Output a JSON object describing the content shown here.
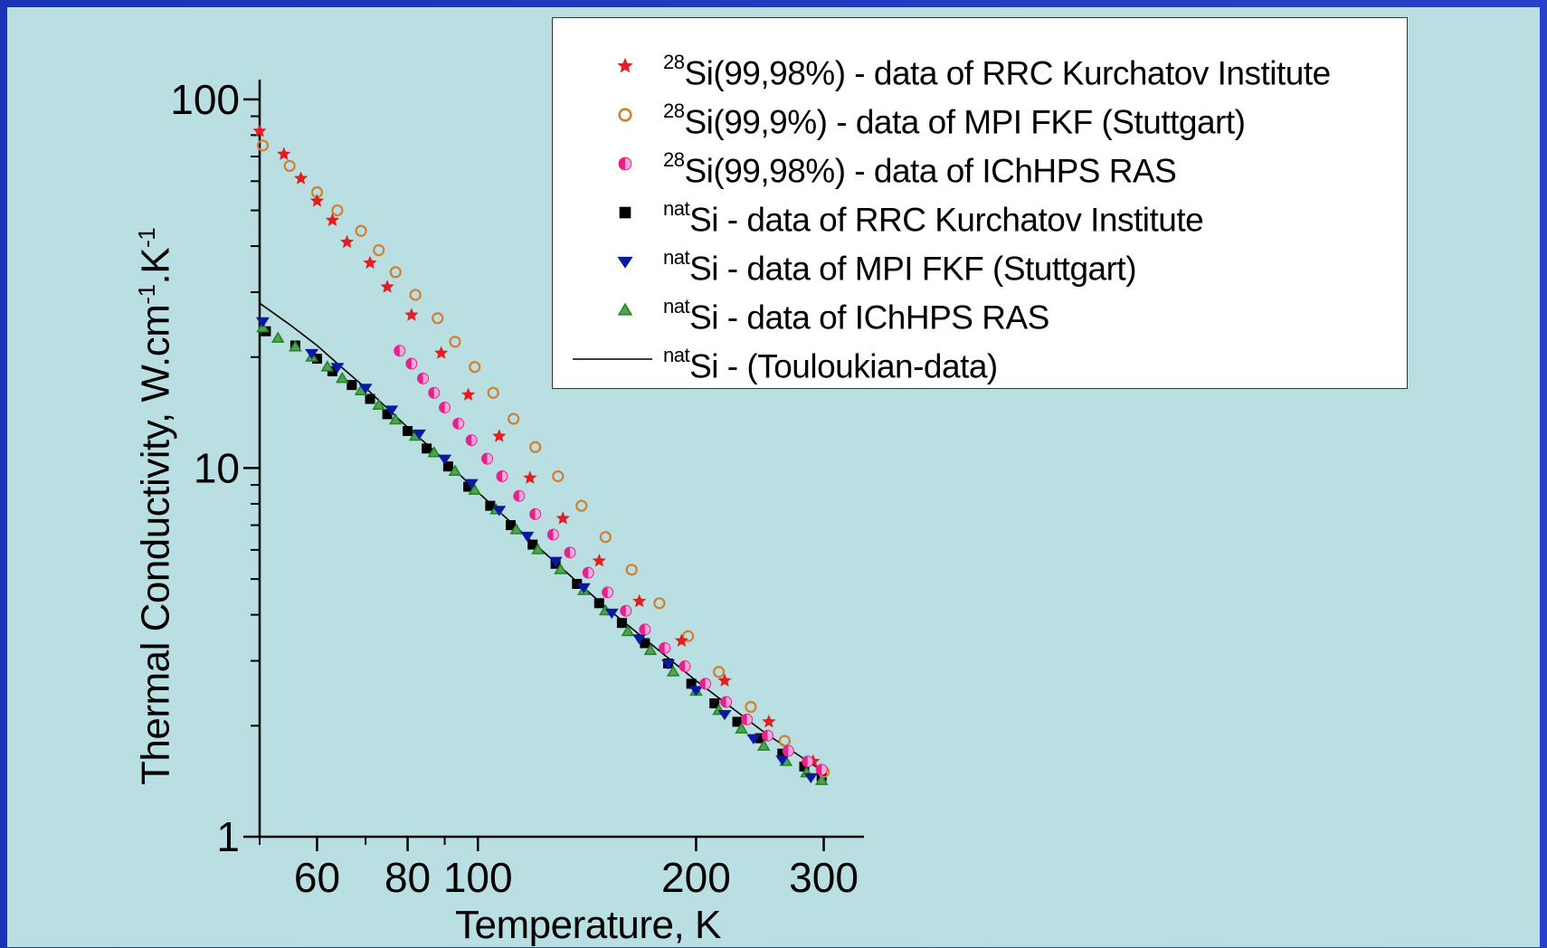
{
  "chart_data": {
    "type": "scatter",
    "xlabel": "Temperature, K",
    "ylabel": "Thermal Conductivity, W.cm-1.K-1",
    "ylabel_parts": [
      "Thermal Conductivity, W.cm",
      "-1",
      ".K",
      "-1"
    ],
    "xscale": "log",
    "yscale": "log",
    "xlim": [
      50,
      320
    ],
    "ylim": [
      1,
      110
    ],
    "x_ticks": [
      60,
      80,
      100,
      200,
      300
    ],
    "y_ticks": [
      1,
      10,
      100
    ],
    "x_tick_labels": [
      "60",
      "80",
      "100",
      "200",
      "300"
    ],
    "y_tick_labels": [
      "1",
      "10",
      "100"
    ],
    "legend_position": "top-right",
    "series": [
      {
        "name": "28Si(99,98%) - data of RRC Kurchatov Institute",
        "legend_sup": "28",
        "legend_text": "Si(99,98%) - data of RRC Kurchatov Institute",
        "marker": "star",
        "color": "#e02020",
        "x": [
          50,
          54,
          57,
          60,
          63,
          66,
          71,
          75,
          81,
          89,
          97,
          107,
          118,
          131,
          147,
          167,
          191,
          219,
          252,
          290
        ],
        "y": [
          82,
          71,
          61,
          53,
          47,
          41,
          36,
          31,
          26,
          20.5,
          15.8,
          12.2,
          9.4,
          7.3,
          5.6,
          4.35,
          3.4,
          2.65,
          2.05,
          1.6
        ]
      },
      {
        "name": "28Si(99,9%)  - data of MPI FKF (Stuttgart)",
        "legend_sup": "28",
        "legend_text": "Si(99,9%)  - data of MPI FKF (Stuttgart)",
        "marker": "ring",
        "color": "#d08030",
        "x": [
          50.5,
          55,
          60,
          64,
          69,
          73,
          77,
          82,
          88,
          93,
          99,
          105,
          112,
          120,
          129,
          139,
          150,
          163,
          178,
          195,
          215,
          238,
          265,
          300
        ],
        "y": [
          75,
          66,
          56,
          50,
          44,
          39,
          34,
          29.5,
          25.5,
          22,
          18.8,
          16,
          13.6,
          11.4,
          9.5,
          7.9,
          6.5,
          5.3,
          4.3,
          3.5,
          2.8,
          2.25,
          1.82,
          1.5
        ]
      },
      {
        "name": "28Si(99,98%) - data of IChHPS RAS",
        "legend_sup": "28",
        "legend_text": "Si(99,98%) - data of IChHPS RAS",
        "marker": "halfcircle",
        "color": "#e8208c",
        "x": [
          78,
          81,
          84,
          87,
          90,
          94,
          98,
          103,
          108,
          114,
          120,
          127,
          134,
          142,
          151,
          160,
          170,
          181,
          193,
          206,
          220,
          235,
          251,
          268,
          285,
          298
        ],
        "y": [
          20.8,
          19.2,
          17.5,
          16,
          14.6,
          13.2,
          11.9,
          10.6,
          9.5,
          8.4,
          7.5,
          6.6,
          5.9,
          5.2,
          4.6,
          4.1,
          3.65,
          3.25,
          2.9,
          2.6,
          2.32,
          2.08,
          1.88,
          1.71,
          1.6,
          1.52
        ]
      },
      {
        "name": "natSi - data of RRC Kurchatov Institute",
        "legend_sup": "nat",
        "legend_text": "Si - data of RRC Kurchatov Institute",
        "marker": "square",
        "color": "#000000",
        "x": [
          51,
          56,
          60,
          63,
          67,
          71,
          75,
          80,
          85,
          91,
          97,
          104,
          111,
          119,
          128,
          137,
          147,
          158,
          170,
          183,
          197,
          212,
          228,
          245,
          263,
          282,
          298
        ],
        "y": [
          23.5,
          21.5,
          19.8,
          18.3,
          16.8,
          15.4,
          14,
          12.6,
          11.3,
          10.1,
          8.9,
          7.9,
          7,
          6.2,
          5.5,
          4.85,
          4.3,
          3.8,
          3.35,
          2.95,
          2.6,
          2.3,
          2.05,
          1.85,
          1.68,
          1.55,
          1.46
        ]
      },
      {
        "name": "natSi - data of MPI FKF (Stuttgart)",
        "legend_sup": "nat",
        "legend_text": "Si - data of MPI FKF (Stuttgart)",
        "marker": "tri-down",
        "color": "#0a1aa0",
        "x": [
          50.5,
          59,
          64,
          70,
          76,
          83,
          90,
          98,
          107,
          117,
          128,
          140,
          153,
          167,
          183,
          200,
          219,
          240,
          263,
          288
        ],
        "y": [
          25,
          20.5,
          18.8,
          16.5,
          14.4,
          12.4,
          10.6,
          9.1,
          7.7,
          6.55,
          5.6,
          4.75,
          4.05,
          3.45,
          2.95,
          2.5,
          2.15,
          1.85,
          1.62,
          1.45
        ]
      },
      {
        "name": "natSi - data of IChHPS RAS",
        "legend_sup": "nat",
        "legend_text": "Si - data of IChHPS RAS",
        "marker": "tri-up",
        "color": "#1a8a1a",
        "x": [
          50.5,
          53,
          56,
          59,
          62,
          65,
          69,
          73,
          77,
          82,
          87,
          93,
          99,
          106,
          113,
          121,
          130,
          140,
          150,
          161,
          173,
          186,
          200,
          215,
          231,
          248,
          266,
          284,
          298
        ],
        "y": [
          24,
          22.5,
          21.3,
          20,
          18.8,
          17.5,
          16.2,
          14.8,
          13.5,
          12.2,
          11,
          9.8,
          8.7,
          7.7,
          6.8,
          6,
          5.3,
          4.65,
          4.1,
          3.6,
          3.2,
          2.8,
          2.48,
          2.2,
          1.96,
          1.76,
          1.6,
          1.49,
          1.42
        ]
      },
      {
        "name": "natSi - (Touloukian-data)",
        "legend_sup": "nat",
        "legend_text": "Si - (Touloukian-data)",
        "marker": "line",
        "color": "#000000",
        "x": [
          50,
          55,
          60,
          65,
          70,
          80,
          90,
          100,
          120,
          150,
          200,
          250,
          300
        ],
        "y": [
          28,
          24.5,
          21.5,
          18.7,
          16.5,
          12.9,
          10.5,
          8.6,
          6.2,
          4.2,
          2.65,
          1.9,
          1.5
        ]
      }
    ]
  }
}
